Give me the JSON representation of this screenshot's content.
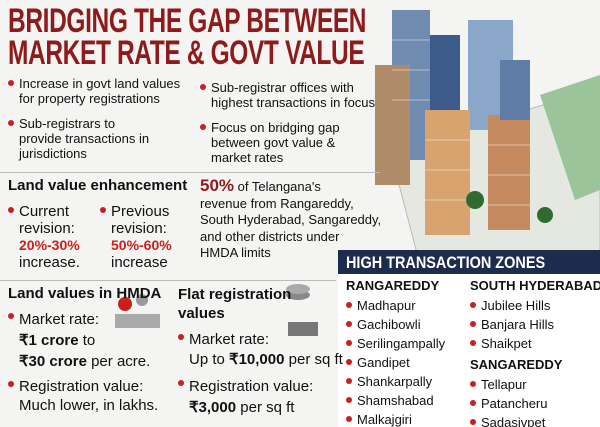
{
  "header": {
    "title_lines": [
      "BRIDGING THE GAP BETWEEN",
      "MARKET RATE & GOVT VALUE"
    ]
  },
  "highlights": [
    {
      "lines": [
        "Increase in govt land values",
        "for property registrations"
      ]
    },
    {
      "lines": [
        "Sub-registrar offices with",
        "highest transactions in focus"
      ]
    },
    {
      "lines": [
        "Sub-registrars to",
        "provide transactions in",
        "jurisdictions"
      ]
    },
    {
      "lines": [
        "Focus on bridging gap",
        "between govt value &",
        "market rates"
      ]
    }
  ],
  "land_value_enhancement": {
    "heading": "Land value enhancement",
    "items": [
      {
        "label_lines": [
          "Current",
          "revision:"
        ],
        "value": "20%-30%",
        "note": "increase."
      },
      {
        "label_lines": [
          "Previous",
          "revision:"
        ],
        "value": "50%-60%",
        "note": "increase"
      }
    ]
  },
  "revenue_share": {
    "percent": "50%",
    "lines": [
      "of Telangana's",
      "revenue from Rangareddy,",
      "South Hyderabad, Sangareddy,",
      "and other districts under",
      "HMDA limits"
    ]
  },
  "hmda": {
    "heading": "Land values in HMDA",
    "market_rate_label": "Market rate:",
    "line1": [
      "₹1 crore",
      "to"
    ],
    "line2": [
      "₹30 crore",
      "per acre."
    ],
    "registration_label": "Registration value:",
    "registration_note": "Much lower, in lakhs."
  },
  "flat": {
    "heading_lines": [
      "Flat registration",
      "values"
    ],
    "market_rate_label": "Market rate:",
    "market_rate": [
      "Up to",
      "₹10,000",
      "per sq ft"
    ],
    "registration_label": "Registration value:",
    "registration": [
      "₹3,000",
      "per sq ft"
    ]
  },
  "zones": {
    "title": "HIGH TRANSACTION ZONES",
    "groups": [
      {
        "name": "RANGAREDDY",
        "places": [
          "Madhapur",
          "Gachibowli",
          "Serilingampally",
          "Gandipet",
          "Shankarpally",
          "Shamshabad",
          "Malkajgiri"
        ]
      },
      {
        "name": "SOUTH HYDERABAD",
        "places": [
          "Jubilee Hills",
          "Banjara Hills",
          "Shaikpet"
        ]
      },
      {
        "name": "SANGAREDDY",
        "places": [
          "Tellapur",
          "Patancheru",
          "Sadasivpet"
        ]
      }
    ]
  }
}
